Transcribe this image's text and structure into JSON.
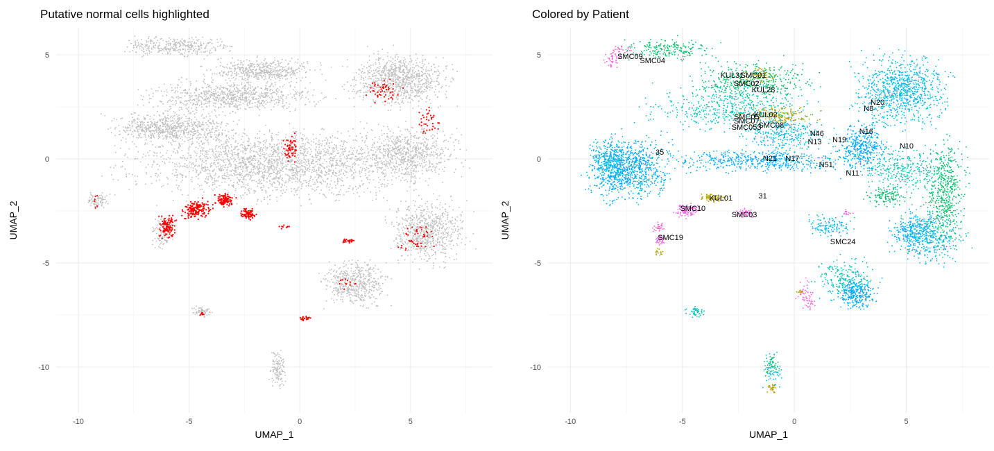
{
  "chart_data": [
    {
      "type": "scatter",
      "title": "Putative normal cells highlighted",
      "xlabel": "UMAP_1",
      "ylabel": "UMAP_2",
      "xlim": [
        -11,
        8.7
      ],
      "ylim": [
        -12.2,
        6.3
      ],
      "xticks": [
        -10,
        -5,
        0,
        5
      ],
      "yticks": [
        -10,
        -5,
        0,
        5
      ],
      "grid": true,
      "colors": {
        "background_cells": "#bebebe",
        "normal_cells": "#ff0000"
      },
      "series": [
        {
          "role": "background",
          "regions": [
            {
              "x": [
                -9.8,
                7.8
              ],
              "y": [
                -2.5,
                2.0
              ],
              "n": 2200
            },
            {
              "x": [
                -9.5,
                -2.0
              ],
              "y": [
                0.5,
                2.5
              ],
              "n": 700
            },
            {
              "x": [
                -8.0,
                2.0
              ],
              "y": [
                2.0,
                4.0
              ],
              "n": 800
            },
            {
              "x": [
                -5.0,
                1.5
              ],
              "y": [
                3.5,
                5.0
              ],
              "n": 500
            },
            {
              "x": [
                -8.8,
                -2.5
              ],
              "y": [
                4.8,
                6.0
              ],
              "n": 350
            },
            {
              "x": [
                1.5,
                7.5
              ],
              "y": [
                2.0,
                5.5
              ],
              "n": 900
            },
            {
              "x": [
                2.0,
                7.8
              ],
              "y": [
                -1.5,
                2.0
              ],
              "n": 600
            },
            {
              "x": [
                3.5,
                8.0
              ],
              "y": [
                -5.5,
                -1.5
              ],
              "n": 700
            },
            {
              "x": [
                0.5,
                4.5
              ],
              "y": [
                -7.5,
                -4.5
              ],
              "n": 500
            },
            {
              "x": [
                -1.5,
                -0.5
              ],
              "y": [
                -11.2,
                -9.0
              ],
              "n": 120
            },
            {
              "x": [
                -5.0,
                -3.8
              ],
              "y": [
                -7.7,
                -7.0
              ],
              "n": 60
            },
            {
              "x": [
                -6.8,
                -5.5
              ],
              "y": [
                -4.5,
                -2.5
              ],
              "n": 120
            },
            {
              "x": [
                -9.8,
                -8.5
              ],
              "y": [
                -2.5,
                -1.5
              ],
              "n": 80
            }
          ]
        },
        {
          "role": "normal",
          "regions": [
            {
              "x": [
                -6.5,
                -5.5
              ],
              "y": [
                -4.0,
                -2.5
              ],
              "n": 120
            },
            {
              "x": [
                -5.5,
                -3.8
              ],
              "y": [
                -3.1,
                -1.8
              ],
              "n": 160
            },
            {
              "x": [
                -4.0,
                -2.8
              ],
              "y": [
                -2.4,
                -1.6
              ],
              "n": 110
            },
            {
              "x": [
                -2.8,
                -1.8
              ],
              "y": [
                -3.0,
                -2.3
              ],
              "n": 90
            },
            {
              "x": [
                -0.8,
                0.0
              ],
              "y": [
                -0.4,
                1.4
              ],
              "n": 60
            },
            {
              "x": [
                2.8,
                4.8
              ],
              "y": [
                2.5,
                4.0
              ],
              "n": 50
            },
            {
              "x": [
                5.0,
                6.5
              ],
              "y": [
                0.8,
                2.8
              ],
              "n": 35
            },
            {
              "x": [
                4.0,
                6.5
              ],
              "y": [
                -4.8,
                -2.8
              ],
              "n": 45
            },
            {
              "x": [
                1.8,
                2.6
              ],
              "y": [
                -4.1,
                -3.8
              ],
              "n": 25
            },
            {
              "x": [
                -0.2,
                0.6
              ],
              "y": [
                -7.8,
                -7.5
              ],
              "n": 20
            },
            {
              "x": [
                -1.0,
                -0.4
              ],
              "y": [
                -3.4,
                -3.1
              ],
              "n": 10
            },
            {
              "x": [
                -4.6,
                -4.2
              ],
              "y": [
                -7.6,
                -7.3
              ],
              "n": 8
            },
            {
              "x": [
                -9.4,
                -9.0
              ],
              "y": [
                -2.6,
                -1.4
              ],
              "n": 6
            },
            {
              "x": [
                1.5,
                3.0
              ],
              "y": [
                -6.5,
                -5.5
              ],
              "n": 12
            }
          ]
        }
      ]
    },
    {
      "type": "scatter",
      "title": "Colored by Patient",
      "xlabel": "UMAP_1",
      "ylabel": "UMAP_2",
      "xlim": [
        -11,
        8.7
      ],
      "ylim": [
        -12.2,
        6.3
      ],
      "xticks": [
        -10,
        -5,
        0,
        5
      ],
      "yticks": [
        -10,
        -5,
        0,
        5
      ],
      "grid": true,
      "colors": {
        "blue": "#00a9ff",
        "cyan": "#00b8e7",
        "teal": "#00c0b8",
        "green": "#00be67",
        "olive": "#b79f00",
        "pink": "#f564e3",
        "magenta": "#ff61c3"
      },
      "series": [
        {
          "color": "blue",
          "regions": [
            {
              "x": [
                -9.8,
                -5.0
              ],
              "y": [
                -2.5,
                1.5
              ],
              "n": 900
            },
            {
              "x": [
                -6.5,
                3.5
              ],
              "y": [
                -0.8,
                0.6
              ],
              "n": 500
            },
            {
              "x": [
                1.5,
                4.5
              ],
              "y": [
                -1.0,
                2.0
              ],
              "n": 400
            },
            {
              "x": [
                1.5,
                4.0
              ],
              "y": [
                -7.5,
                -5.5
              ],
              "n": 300
            },
            {
              "x": [
                4.0,
                6.5
              ],
              "y": [
                -4.5,
                -2.5
              ],
              "n": 200
            }
          ]
        },
        {
          "color": "cyan",
          "regions": [
            {
              "x": [
                2.0,
                7.5
              ],
              "y": [
                1.0,
                5.5
              ],
              "n": 900
            },
            {
              "x": [
                -3.0,
                2.0
              ],
              "y": [
                0.0,
                2.5
              ],
              "n": 300
            },
            {
              "x": [
                4.0,
                8.0
              ],
              "y": [
                -5.5,
                -2.0
              ],
              "n": 400
            },
            {
              "x": [
                -9.5,
                -7.0
              ],
              "y": [
                -2.0,
                1.5
              ],
              "n": 250
            },
            {
              "x": [
                -1.5,
                -0.5
              ],
              "y": [
                -11.2,
                -9.0
              ],
              "n": 60
            },
            {
              "x": [
                0.0,
                3.0
              ],
              "y": [
                -4.0,
                -2.5
              ],
              "n": 120
            }
          ]
        },
        {
          "color": "teal",
          "regions": [
            {
              "x": [
                -8.0,
                2.0
              ],
              "y": [
                1.0,
                4.0
              ],
              "n": 500
            },
            {
              "x": [
                2.5,
                7.5
              ],
              "y": [
                -2.0,
                1.0
              ],
              "n": 300
            },
            {
              "x": [
                -5.0,
                -3.8
              ],
              "y": [
                -7.7,
                -7.0
              ],
              "n": 50
            },
            {
              "x": [
                0.5,
                4.0
              ],
              "y": [
                -7.0,
                -4.5
              ],
              "n": 200
            }
          ]
        },
        {
          "color": "green",
          "regions": [
            {
              "x": [
                -5.0,
                1.5
              ],
              "y": [
                2.5,
                5.0
              ],
              "n": 400
            },
            {
              "x": [
                5.5,
                8.0
              ],
              "y": [
                -5.0,
                1.5
              ],
              "n": 500
            },
            {
              "x": [
                -8.5,
                -3.0
              ],
              "y": [
                4.5,
                6.0
              ],
              "n": 200
            },
            {
              "x": [
                3.0,
                5.5
              ],
              "y": [
                -2.5,
                -1.0
              ],
              "n": 120
            },
            {
              "x": [
                -1.5,
                -0.5
              ],
              "y": [
                -10.5,
                -9.3
              ],
              "n": 40
            }
          ]
        },
        {
          "color": "olive",
          "regions": [
            {
              "x": [
                -2.8,
                1.5
              ],
              "y": [
                1.5,
                2.6
              ],
              "n": 150
            },
            {
              "x": [
                -4.5,
                -2.8
              ],
              "y": [
                -2.2,
                -1.6
              ],
              "n": 80
            },
            {
              "x": [
                -2.5,
                -0.5
              ],
              "y": [
                3.5,
                4.5
              ],
              "n": 60
            },
            {
              "x": [
                -1.3,
                -0.7
              ],
              "y": [
                -11.3,
                -10.7
              ],
              "n": 30
            },
            {
              "x": [
                -6.3,
                -5.8
              ],
              "y": [
                -4.7,
                -4.2
              ],
              "n": 15
            },
            {
              "x": [
                0.0,
                0.5
              ],
              "y": [
                -6.6,
                -6.2
              ],
              "n": 15
            }
          ]
        },
        {
          "color": "pink",
          "regions": [
            {
              "x": [
                -5.5,
                -4.0
              ],
              "y": [
                -3.0,
                -2.0
              ],
              "n": 100
            },
            {
              "x": [
                -2.8,
                -1.5
              ],
              "y": [
                -2.9,
                -2.3
              ],
              "n": 60
            },
            {
              "x": [
                -6.3,
                -5.7
              ],
              "y": [
                -4.3,
                -3.5
              ],
              "n": 40
            },
            {
              "x": [
                -8.7,
                -7.5
              ],
              "y": [
                4.2,
                5.3
              ],
              "n": 40
            },
            {
              "x": [
                0.0,
                1.0
              ],
              "y": [
                -7.5,
                -5.5
              ],
              "n": 40
            },
            {
              "x": [
                2.0,
                2.7
              ],
              "y": [
                -2.8,
                -2.4
              ],
              "n": 15
            }
          ]
        },
        {
          "color": "magenta",
          "regions": [
            {
              "x": [
                -6.5,
                -5.5
              ],
              "y": [
                -3.6,
                -3.0
              ],
              "n": 30
            },
            {
              "x": [
                -8.5,
                -7.0
              ],
              "y": [
                4.8,
                5.7
              ],
              "n": 30
            },
            {
              "x": [
                0.2,
                1.0
              ],
              "y": [
                -7.5,
                -6.5
              ],
              "n": 20
            }
          ]
        }
      ],
      "annotations": [
        {
          "text": "SMC09",
          "x": -7.9,
          "y": 4.8
        },
        {
          "text": "SMC04",
          "x": -6.9,
          "y": 4.6
        },
        {
          "text": "KUL31",
          "x": -3.3,
          "y": 3.9
        },
        {
          "text": "SMC01",
          "x": -2.4,
          "y": 3.9
        },
        {
          "text": "SMC02",
          "x": -2.7,
          "y": 3.5
        },
        {
          "text": "KUL28",
          "x": -1.9,
          "y": 3.2
        },
        {
          "text": "SMC05",
          "x": -2.7,
          "y": 1.9
        },
        {
          "text": "KUL02",
          "x": -1.8,
          "y": 2.0
        },
        {
          "text": "SMC07",
          "x": -2.7,
          "y": 1.7
        },
        {
          "text": "N20",
          "x": 3.4,
          "y": 2.6
        },
        {
          "text": "N8",
          "x": 3.1,
          "y": 2.3
        },
        {
          "text": "SMC053",
          "x": -2.8,
          "y": 1.4
        },
        {
          "text": "SMC08",
          "x": -1.6,
          "y": 1.5
        },
        {
          "text": "N46",
          "x": 0.7,
          "y": 1.1
        },
        {
          "text": "N19",
          "x": 1.7,
          "y": 0.8
        },
        {
          "text": "N16",
          "x": 2.9,
          "y": 1.2
        },
        {
          "text": "N13",
          "x": 0.6,
          "y": 0.7
        },
        {
          "text": "N10",
          "x": 4.7,
          "y": 0.5
        },
        {
          "text": "35",
          "x": -6.2,
          "y": 0.2
        },
        {
          "text": "N21",
          "x": -1.4,
          "y": -0.1
        },
        {
          "text": "N17",
          "x": -0.4,
          "y": -0.1
        },
        {
          "text": "N51",
          "x": 1.1,
          "y": -0.4
        },
        {
          "text": "N11",
          "x": 2.3,
          "y": -0.8
        },
        {
          "text": "KUL01",
          "x": -3.8,
          "y": -2.0
        },
        {
          "text": "31",
          "x": -1.6,
          "y": -1.9
        },
        {
          "text": "SMC10",
          "x": -5.1,
          "y": -2.5
        },
        {
          "text": "SMC03",
          "x": -2.8,
          "y": -2.8
        },
        {
          "text": "SMC19",
          "x": -6.1,
          "y": -3.9
        },
        {
          "text": "SMC24",
          "x": 1.6,
          "y": -4.1
        }
      ]
    }
  ]
}
